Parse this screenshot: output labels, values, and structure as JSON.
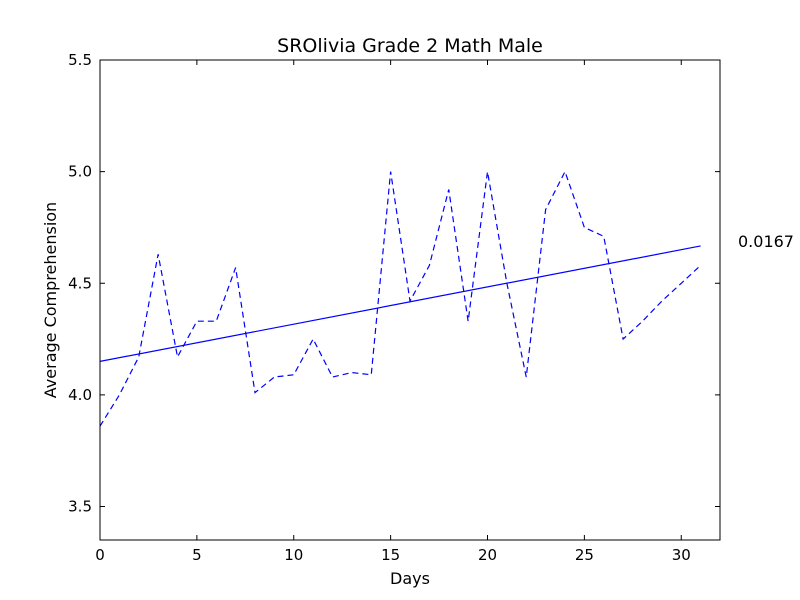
{
  "chart_data": {
    "type": "line",
    "title": "SROlivia Grade 2 Math Male",
    "xlabel": "Days",
    "ylabel": "Average Comprehension",
    "xlim": [
      0,
      32
    ],
    "ylim": [
      3.35,
      5.5
    ],
    "xticks": [
      0,
      5,
      10,
      15,
      20,
      25,
      30
    ],
    "yticks": [
      3.5,
      4.0,
      4.5,
      5.0,
      5.5
    ],
    "grid": false,
    "annotation": "0.0167",
    "series": [
      {
        "style": "dashed",
        "color": "#0000ff",
        "x": [
          0,
          1,
          2,
          3,
          4,
          5,
          6,
          7,
          8,
          9,
          10,
          11,
          12,
          13,
          14,
          15,
          16,
          17,
          18,
          19,
          20,
          21,
          22,
          23,
          24,
          25,
          26,
          27,
          28,
          29,
          30,
          31
        ],
        "y": [
          3.86,
          4.0,
          4.17,
          4.63,
          4.17,
          4.33,
          4.33,
          4.57,
          4.01,
          4.08,
          4.09,
          4.25,
          4.08,
          4.1,
          4.09,
          5.0,
          4.42,
          4.58,
          4.92,
          4.33,
          5.0,
          4.5,
          4.08,
          4.83,
          5.0,
          4.75,
          4.71,
          4.25,
          4.33,
          4.42,
          4.5,
          4.58
        ]
      },
      {
        "style": "solid",
        "color": "#0000ff",
        "x": [
          0,
          31
        ],
        "y": [
          4.15,
          4.667
        ]
      }
    ]
  }
}
